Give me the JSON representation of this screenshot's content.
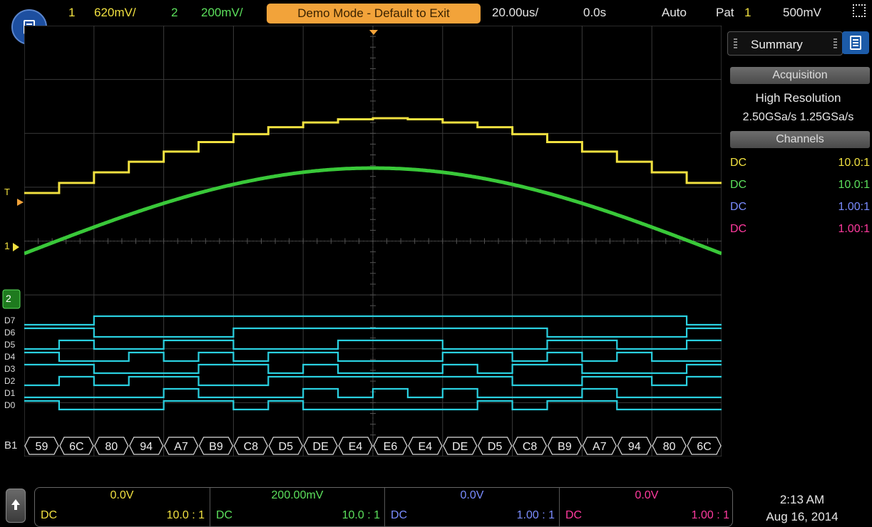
{
  "topbar": {
    "ch1_num": "1",
    "ch1_scale": "620mV/",
    "ch2_num": "2",
    "ch2_scale": "200mV/",
    "demo": "Demo Mode - Default to Exit",
    "timebase": "20.00us/",
    "delay": "0.0s",
    "trigger_mode": "Auto",
    "trigger_type": "Pat",
    "trigger_ch": "1",
    "trigger_level": "500mV"
  },
  "markers": {
    "trigger": "T",
    "ch1": "1",
    "ch2": "2",
    "digital": [
      "D7",
      "D6",
      "D5",
      "D4",
      "D3",
      "D2",
      "D1",
      "D0"
    ],
    "bus": "B1"
  },
  "bus_values": [
    "59",
    "6C",
    "80",
    "94",
    "A7",
    "B9",
    "C8",
    "D5",
    "DE",
    "E4",
    "E6",
    "E4",
    "DE",
    "D5",
    "C8",
    "B9",
    "A7",
    "94",
    "80",
    "6C"
  ],
  "sidebar": {
    "tab": "Summary",
    "acq_header": "Acquisition",
    "acq_mode": "High Resolution",
    "sample_rates": "2.50GSa/s 1.25GSa/s",
    "ch_header": "Channels",
    "channels": [
      {
        "coupling": "DC",
        "probe": "10.0:1",
        "color": "#f0e040"
      },
      {
        "coupling": "DC",
        "probe": "10.0:1",
        "color": "#5ce05c"
      },
      {
        "coupling": "DC",
        "probe": "1.00:1",
        "color": "#7a8cff"
      },
      {
        "coupling": "DC",
        "probe": "1.00:1",
        "color": "#ff3a9e"
      }
    ]
  },
  "bottom": {
    "channels": [
      {
        "offset": "0.0V",
        "coupling": "DC",
        "probe": "10.0 : 1",
        "color": "#f0e040"
      },
      {
        "offset": "200.00mV",
        "coupling": "DC",
        "probe": "10.0 : 1",
        "color": "#5ce05c"
      },
      {
        "offset": "0.0V",
        "coupling": "DC",
        "probe": "1.00 : 1",
        "color": "#7a8cff"
      },
      {
        "offset": "0.0V",
        "coupling": "DC",
        "probe": "1.00 : 1",
        "color": "#ff3a9e"
      }
    ],
    "time": "2:13 AM",
    "date": "Aug 16, 2014"
  },
  "colors": {
    "ch1": "#f0e040",
    "ch2": "#39c839",
    "digital": "#2ad0e0",
    "grid": "#3a3a3a",
    "demo_bg": "#f2a33a"
  }
}
